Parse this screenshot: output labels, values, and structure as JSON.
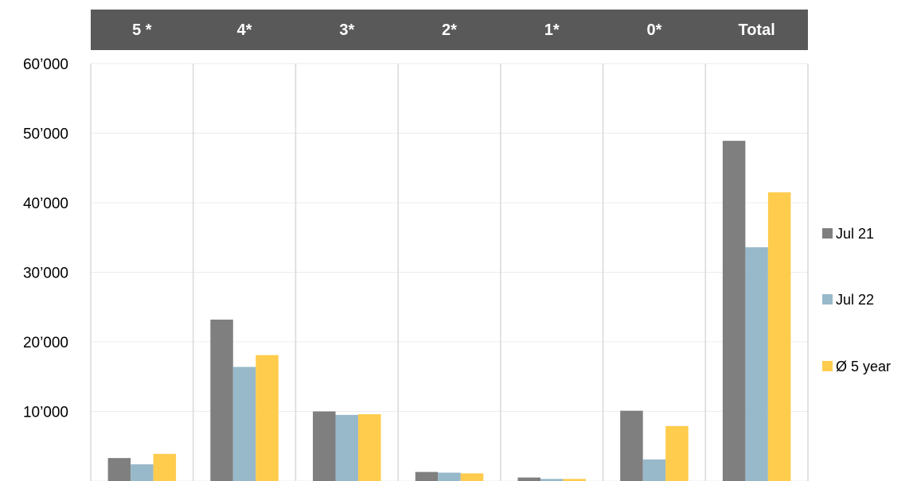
{
  "chart_data": {
    "type": "bar",
    "categories": [
      "5 *",
      "4*",
      "3*",
      "2*",
      "1*",
      "0*",
      "Total"
    ],
    "series": [
      {
        "name": "Jul 21",
        "color": "#7f7f7f",
        "values": [
          3300,
          23200,
          10000,
          1300,
          500,
          10100,
          48900
        ]
      },
      {
        "name": "Jul 22",
        "color": "#98b9c9",
        "values": [
          2400,
          16400,
          9500,
          1200,
          300,
          3100,
          33600
        ]
      },
      {
        "name": "Ø 5 year",
        "color": "#ffcc4d",
        "values": [
          3900,
          18100,
          9600,
          1100,
          300,
          7900,
          41500
        ]
      }
    ],
    "y_ticks": [
      "",
      "10’000",
      "20’000",
      "30’000",
      "40’000",
      "50’000",
      "60’000"
    ],
    "ylim": [
      0,
      60000
    ],
    "grid": true,
    "legend_position": "right",
    "header_band_color": "#595959"
  }
}
